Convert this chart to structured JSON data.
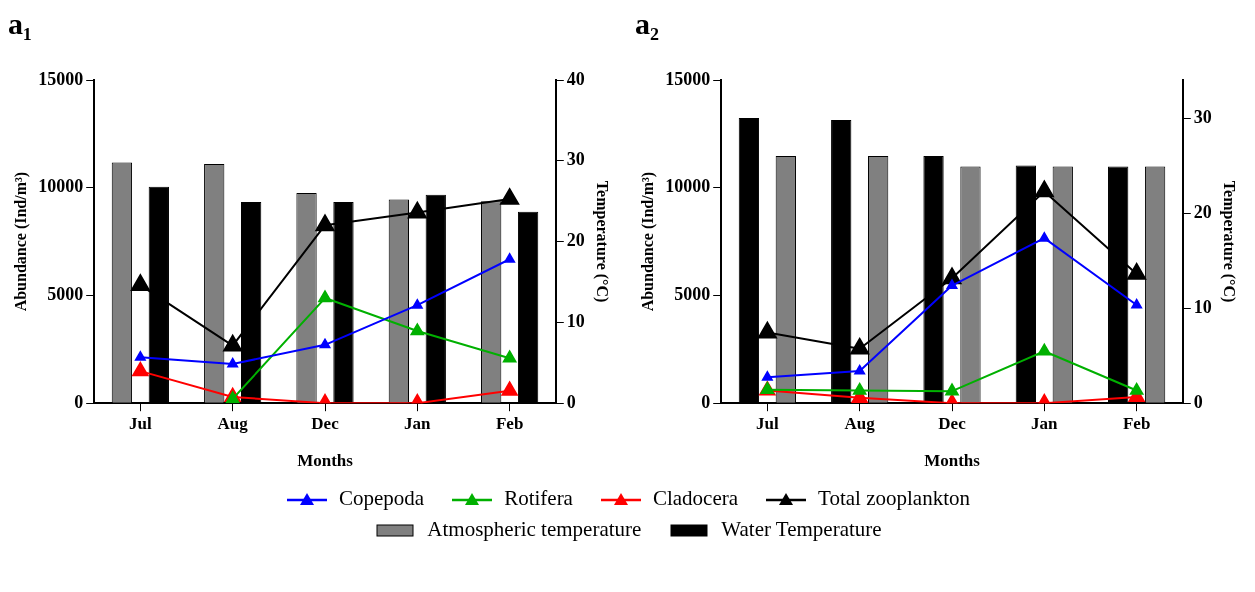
{
  "chart_data": [
    {
      "type": "bar",
      "title": "a₁",
      "xlabel": "Months",
      "ylabel": "Abundance (Ind/m³)",
      "y2label": "Temperature (°C)",
      "categories": [
        "Jul",
        "Aug",
        "Dec",
        "Jan",
        "Feb"
      ],
      "ylim": [
        0,
        15000
      ],
      "yticks": [
        0,
        5000,
        10000,
        15000
      ],
      "y2lim": [
        0,
        40
      ],
      "y2ticks": [
        0,
        10,
        20,
        30,
        40
      ],
      "marker": "triangle",
      "legend": "bottom",
      "series": [
        {
          "name": "Atmospheric temperature",
          "color": "#808080",
          "axis": "y2",
          "values": [
            29.8,
            29.6,
            26.0,
            25.2,
            25.0
          ]
        },
        {
          "name": "Water Temperature",
          "color": "#000000",
          "axis": "y2",
          "values": [
            26.8,
            24.9,
            24.9,
            25.8,
            23.7
          ]
        },
        {
          "name": "Copepoda",
          "type": "line",
          "color": "#0000ff",
          "values": [
            2130,
            1820,
            2710,
            4550,
            6680
          ]
        },
        {
          "name": "Rotifera",
          "type": "line",
          "color": "#00b000",
          "values": [
            null,
            200,
            4880,
            3350,
            2090
          ]
        },
        {
          "name": "Cladocera",
          "type": "line",
          "color": "#ff0000",
          "values": [
            1490,
            290,
            0,
            0,
            580
          ]
        },
        {
          "name": "Total zooplankton",
          "type": "line",
          "color": "#000000",
          "values": [
            5480,
            2670,
            8260,
            8850,
            9480
          ]
        }
      ]
    },
    {
      "type": "bar",
      "title": "a₂",
      "xlabel": "Months",
      "ylabel": "Abundance (Ind/m³)",
      "y2label": "Temperature (°C)",
      "categories": [
        "Jul",
        "Aug",
        "Dec",
        "Jan",
        "Feb"
      ],
      "ylim": [
        0,
        15000
      ],
      "yticks": [
        0,
        5000,
        10000,
        15000
      ],
      "y2lim": [
        0,
        34
      ],
      "y2ticks": [
        0,
        10,
        20,
        30
      ],
      "marker": "triangle",
      "legend": "bottom",
      "series": [
        {
          "name": "Water Temperature",
          "color": "#000000",
          "axis": "y2",
          "values": [
            30.0,
            29.8,
            26.0,
            25.0,
            24.9
          ]
        },
        {
          "name": "Atmospheric temperature",
          "color": "#808080",
          "axis": "y2",
          "values": [
            26.0,
            26.0,
            24.9,
            24.9,
            24.9
          ]
        },
        {
          "name": "Copepoda",
          "type": "line",
          "color": "#0000ff",
          "values": [
            1210,
            1490,
            5460,
            7660,
            4560
          ]
        },
        {
          "name": "Rotifera",
          "type": "line",
          "color": "#00b000",
          "values": [
            630,
            590,
            560,
            2410,
            590
          ]
        },
        {
          "name": "Cladocera",
          "type": "line",
          "color": "#ff0000",
          "values": [
            590,
            250,
            0,
            0,
            290
          ]
        },
        {
          "name": "Total zooplankton",
          "type": "line",
          "color": "#000000",
          "values": [
            3280,
            2530,
            5800,
            9830,
            6000
          ]
        }
      ]
    }
  ]
}
